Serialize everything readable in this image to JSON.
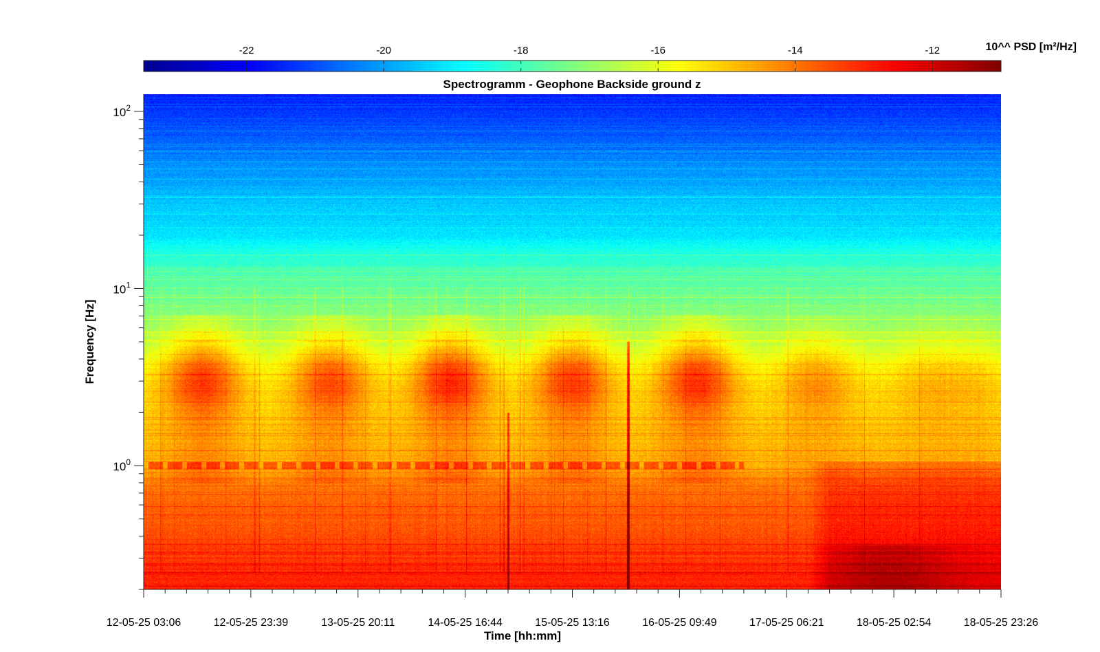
{
  "chart_data": {
    "type": "heatmap",
    "title": "Spectrogramm - Geophone Backside ground z",
    "xlabel": "Time [hh:mm]",
    "ylabel": "Frequency [Hz]",
    "x_ticks": [
      "12-05-25 03:06",
      "12-05-25 23:39",
      "13-05-25 20:11",
      "14-05-25 16:44",
      "15-05-25 13:16",
      "16-05-25 09:49",
      "17-05-25 06:21",
      "18-05-25 02:54",
      "18-05-25 23:26"
    ],
    "y_scale": "log",
    "y_ticks": [
      {
        "base": "10",
        "exp": "0",
        "value": 1
      },
      {
        "base": "10",
        "exp": "1",
        "value": 10
      },
      {
        "base": "10",
        "exp": "2",
        "value": 100
      }
    ],
    "ylim": [
      0.2,
      125
    ],
    "colorbar": {
      "label": "10^^ PSD [m²/Hz]",
      "ticks": [
        "-22",
        "-20",
        "-18",
        "-16",
        "-14",
        "-12"
      ],
      "tick_values": [
        -22,
        -20,
        -18,
        -16,
        -14,
        -12
      ],
      "range": [
        -23.5,
        -11.0
      ],
      "colormap": "jet",
      "position": "top"
    },
    "psd_profile": [
      {
        "freq": 125,
        "log_psd": -21.6
      },
      {
        "freq": 80,
        "log_psd": -21.0
      },
      {
        "freq": 50,
        "log_psd": -20.2
      },
      {
        "freq": 30,
        "log_psd": -19.5
      },
      {
        "freq": 20,
        "log_psd": -19.1
      },
      {
        "freq": 15,
        "log_psd": -18.3
      },
      {
        "freq": 10,
        "log_psd": -17.6
      },
      {
        "freq": 6,
        "log_psd": -17.0
      },
      {
        "freq": 3,
        "log_psd": -15.6
      },
      {
        "freq": 1.5,
        "log_psd": -15.0
      },
      {
        "freq": 1.0,
        "log_psd": -14.8
      },
      {
        "freq": 0.7,
        "log_psd": -13.9
      },
      {
        "freq": 0.4,
        "log_psd": -13.5
      },
      {
        "freq": 0.2,
        "log_psd": -12.9
      }
    ]
  }
}
